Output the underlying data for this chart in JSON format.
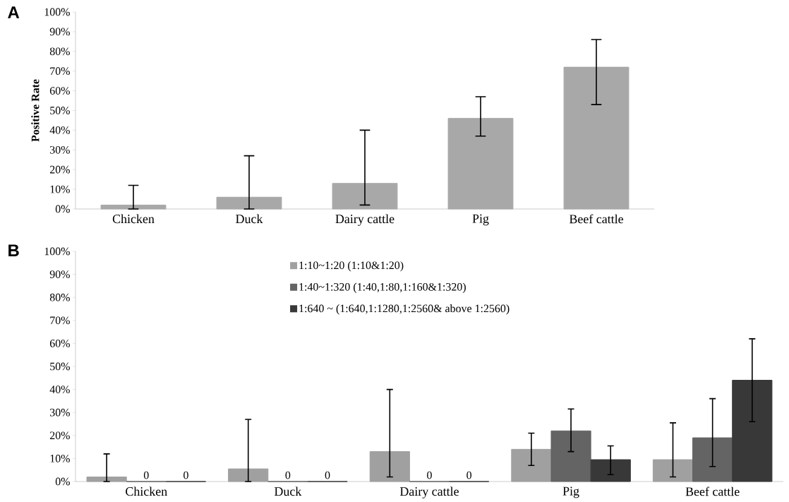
{
  "chart_data": [
    {
      "type": "bar",
      "title": "A",
      "ylabel": "Positive Rate",
      "categories": [
        "Chicken",
        "Duck",
        "Dairy cattle",
        "Pig",
        "Beef cattle"
      ],
      "series": [
        {
          "color": "#a8a8a8",
          "values": [
            2,
            6,
            13,
            46,
            72
          ],
          "errors": [
            [
              0,
              12
            ],
            [
              0,
              27
            ],
            [
              2,
              40
            ],
            [
              37,
              57
            ],
            [
              53,
              86
            ]
          ]
        }
      ],
      "ylim": [
        0,
        100
      ],
      "yticks": [
        {
          "value": 0,
          "label": "0%"
        },
        {
          "value": 10,
          "label": "10%"
        },
        {
          "value": 20,
          "label": "20%"
        },
        {
          "value": 30,
          "label": "30%"
        },
        {
          "value": 40,
          "label": "40%"
        },
        {
          "value": 50,
          "label": "50%"
        },
        {
          "value": 60,
          "label": "60%"
        },
        {
          "value": 70,
          "label": "70%"
        },
        {
          "value": 80,
          "label": "80%"
        },
        {
          "value": 90,
          "label": "90%"
        },
        {
          "value": 100,
          "label": "100%"
        }
      ]
    },
    {
      "type": "bar",
      "title": "B",
      "categories": [
        "Chicken",
        "Duck",
        "Dairy cattle",
        "Pig",
        "Beef cattle"
      ],
      "series": [
        {
          "name": "1:10~1:20 (1:10&1:20)",
          "color": "#a0a0a0",
          "values": [
            2,
            5.5,
            13,
            14,
            9.5
          ],
          "errors": [
            [
              0,
              12
            ],
            [
              0,
              27
            ],
            [
              2,
              40
            ],
            [
              7,
              21
            ],
            [
              2,
              25.5
            ]
          ]
        },
        {
          "name": "1:40~1:320 (1:40,1:80,1:160&1:320)",
          "color": "#646464",
          "values": [
            0,
            0,
            0,
            22,
            19
          ],
          "errors": [
            null,
            null,
            null,
            [
              13,
              31.5
            ],
            [
              6.5,
              36
            ]
          ],
          "value_labels": [
            "0",
            "0",
            "0",
            null,
            null
          ]
        },
        {
          "name": "1:640 ~ (1:640,1:1280,1:2560& above 1:2560)",
          "color": "#383838",
          "values": [
            0,
            0,
            0,
            9.5,
            44
          ],
          "errors": [
            null,
            null,
            null,
            [
              3,
              15.5
            ],
            [
              26,
              62
            ]
          ],
          "value_labels": [
            "0",
            "0",
            "0",
            null,
            null
          ]
        }
      ],
      "ylim": [
        0,
        100
      ],
      "yticks": [
        {
          "value": 0,
          "label": "0%"
        },
        {
          "value": 10,
          "label": "10%"
        },
        {
          "value": 20,
          "label": "20%"
        },
        {
          "value": 30,
          "label": "30%"
        },
        {
          "value": 40,
          "label": "40%"
        },
        {
          "value": 50,
          "label": "50%"
        },
        {
          "value": 60,
          "label": "60%"
        },
        {
          "value": 70,
          "label": "70%"
        },
        {
          "value": 80,
          "label": "80%"
        },
        {
          "value": 90,
          "label": "90%"
        },
        {
          "value": 100,
          "label": "100%"
        }
      ],
      "legend": "top"
    }
  ]
}
